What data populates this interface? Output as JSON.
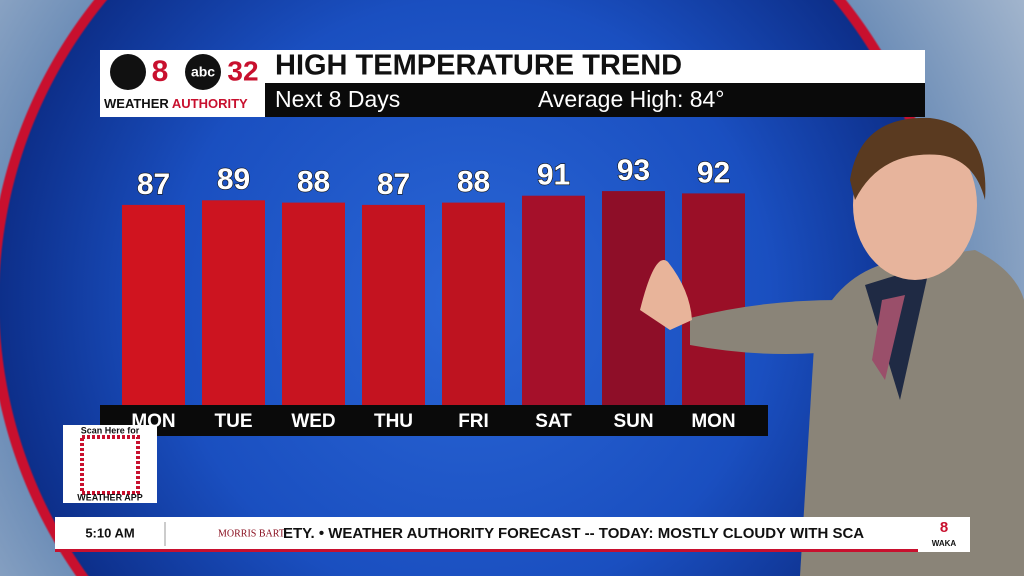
{
  "branding": {
    "station_number": "8",
    "network": "abc",
    "channel": "32",
    "brand_weather": "WEATHER ",
    "brand_authority": "AUTHORITY"
  },
  "chart_data": {
    "type": "bar",
    "title": "HIGH TEMPERATURE TREND",
    "subtitle": "Next 8 Days",
    "annotation": "Average High: 84°",
    "categories": [
      "MON",
      "TUE",
      "WED",
      "THU",
      "FRI",
      "SAT",
      "SUN",
      "MON"
    ],
    "values": [
      87,
      89,
      88,
      87,
      88,
      91,
      93,
      92
    ],
    "colors": [
      "#d0141f",
      "#cc1420",
      "#c81420",
      "#c41320",
      "#be1320",
      "#a5102a",
      "#8e0e28",
      "#9a0f27"
    ]
  },
  "qr": {
    "top": "Scan Here for",
    "bottom": "WEATHER APP"
  },
  "ticker": {
    "time": "5:10 AM",
    "sponsor": "MORRIS BART",
    "text": "ETY. • WEATHER AUTHORITY FORECAST -- TODAY: MOSTLY CLOUDY WITH SCA",
    "logo_number": "8",
    "logo_call": "WAKA"
  }
}
